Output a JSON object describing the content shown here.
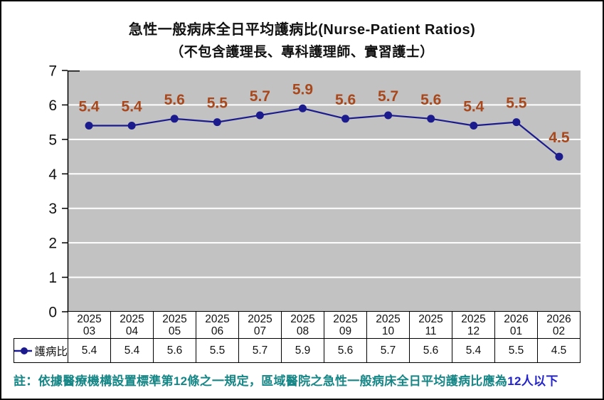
{
  "chart_data": {
    "type": "line",
    "title": "急性一般病床全日平均護病比(Nurse-Patient Ratios)",
    "subtitle": "（不包含護理長、專科護理師、實習護士）",
    "categories": [
      "2025 03",
      "2025 04",
      "2025 05",
      "2025 06",
      "2025 07",
      "2025 08",
      "2025 09",
      "2025 10",
      "2025 11",
      "2025 12",
      "2026 01",
      "2026 02"
    ],
    "series": [
      {
        "name": "護病比",
        "values": [
          5.4,
          5.4,
          5.6,
          5.5,
          5.7,
          5.9,
          5.6,
          5.7,
          5.6,
          5.4,
          5.5,
          4.5
        ]
      }
    ],
    "ylim": [
      0,
      7
    ],
    "yticks": [
      0,
      1,
      2,
      3,
      4,
      5,
      6,
      7
    ],
    "grid": "horizontal-white-on-gray",
    "legend_position": "table-row-left",
    "data_labels": true
  },
  "note": {
    "prefix": "註：依據醫療機構設置標準第12條之一規定，區域醫院之急性一般病床全日平均護病比應為",
    "highlight": "12人以下"
  },
  "colors": {
    "plot_bg": "#c2c2c2",
    "grid": "#ffffff",
    "line": "#1b1b8e",
    "marker": "#1b1b8e",
    "data_label": "#a8481c",
    "axis": "#000000",
    "table_border": "#000000",
    "note": "#168686",
    "note_highlight": "#2323cc",
    "background": "#ffffff"
  }
}
